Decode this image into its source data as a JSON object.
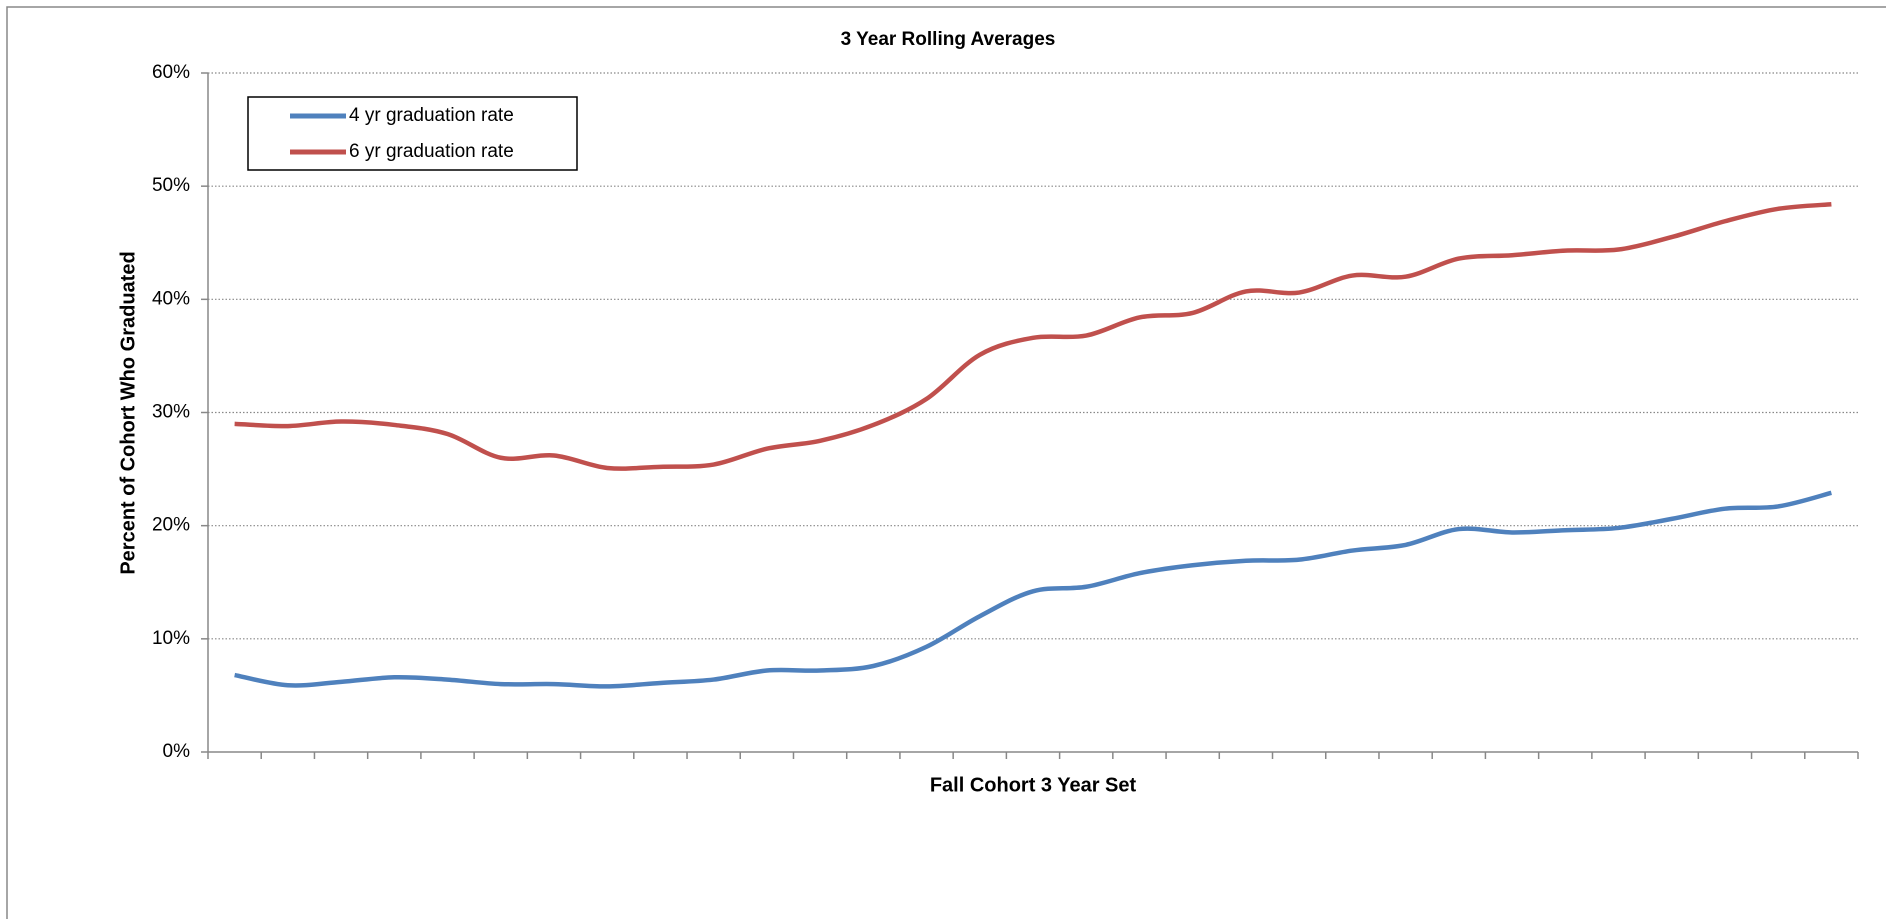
{
  "chart_data": {
    "type": "line",
    "title": "3 Year Rolling Averages",
    "x_label": "Fall Cohort 3 Year Set",
    "y_label": "Percent of Cohort Who Graduated",
    "categories": [
      null,
      null,
      null,
      null,
      null,
      null,
      null,
      null,
      null,
      null,
      null,
      null,
      null,
      null,
      null,
      null,
      null,
      null,
      null,
      null,
      null,
      null,
      null,
      null,
      null,
      null,
      null,
      null,
      null,
      null,
      null
    ],
    "series": [
      {
        "name": "4 yr graduation rate",
        "color": "#4f81bd",
        "values": [
          6.8,
          5.9,
          6.2,
          6.6,
          6.4,
          6.0,
          6.0,
          5.8,
          6.1,
          6.4,
          7.2,
          7.2,
          7.6,
          9.3,
          12.0,
          14.2,
          14.6,
          15.8,
          16.5,
          16.9,
          17.0,
          17.8,
          18.3,
          19.7,
          19.4,
          19.6,
          19.8,
          20.6,
          21.5,
          21.7,
          22.9
        ]
      },
      {
        "name": "6 yr graduation rate",
        "color": "#c0504d",
        "values": [
          29.0,
          28.8,
          29.2,
          28.9,
          28.1,
          26.0,
          26.2,
          25.1,
          25.2,
          25.4,
          26.8,
          27.5,
          28.9,
          31.2,
          35.1,
          36.6,
          36.8,
          38.4,
          38.8,
          40.7,
          40.6,
          42.1,
          42.0,
          43.6,
          43.9,
          44.3,
          44.4,
          45.5,
          46.9,
          48.0,
          48.4
        ]
      }
    ],
    "ylim": [
      0,
      60
    ],
    "yticks": [
      {
        "value": 0,
        "label": "0%"
      },
      {
        "value": 10,
        "label": "10%"
      },
      {
        "value": 20,
        "label": "20%"
      },
      {
        "value": 30,
        "label": "30%"
      },
      {
        "value": 40,
        "label": "40%"
      },
      {
        "value": 50,
        "label": "50%"
      },
      {
        "value": 60,
        "label": "60%"
      }
    ],
    "grid": true,
    "legend": "upper left"
  }
}
